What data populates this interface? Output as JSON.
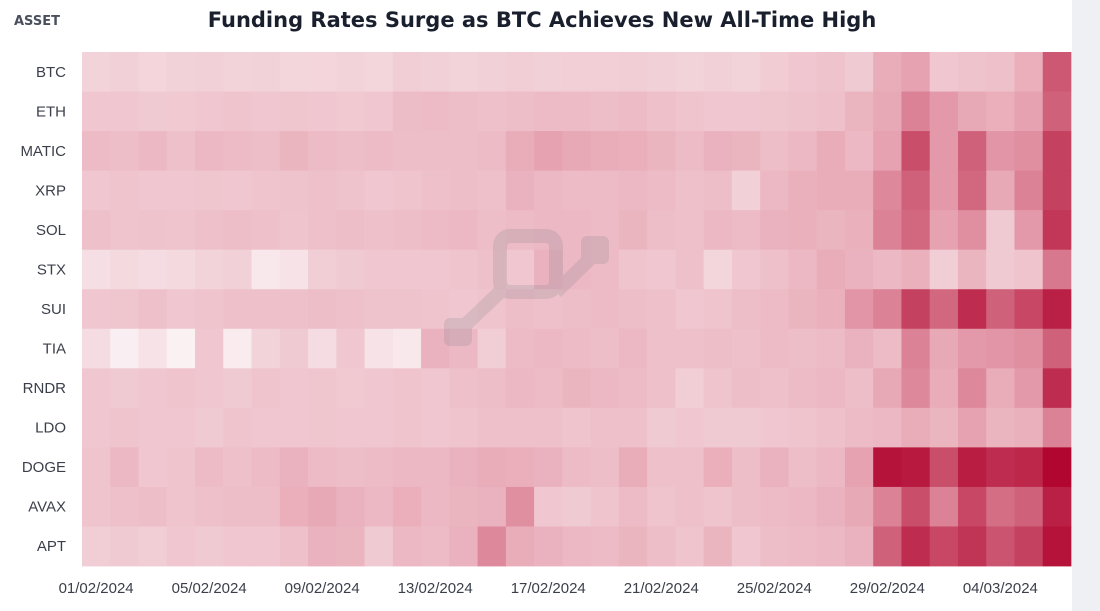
{
  "chart_data": {
    "type": "heatmap",
    "title": "Funding Rates Surge as BTC Achieves New All-Time High",
    "ylabel": "ASSET",
    "xlabel": "",
    "rows": [
      "BTC",
      "ETH",
      "MATIC",
      "XRP",
      "SOL",
      "STX",
      "SUI",
      "TIA",
      "RNDR",
      "LDO",
      "DOGE",
      "AVAX",
      "APT"
    ],
    "columns": [
      "01/02/2024",
      "02/02/2024",
      "03/02/2024",
      "04/02/2024",
      "05/02/2024",
      "06/02/2024",
      "07/02/2024",
      "08/02/2024",
      "09/02/2024",
      "10/02/2024",
      "11/02/2024",
      "12/02/2024",
      "13/02/2024",
      "14/02/2024",
      "15/02/2024",
      "16/02/2024",
      "17/02/2024",
      "18/02/2024",
      "19/02/2024",
      "20/02/2024",
      "21/02/2024",
      "22/02/2024",
      "23/02/2024",
      "24/02/2024",
      "25/02/2024",
      "26/02/2024",
      "27/02/2024",
      "28/02/2024",
      "29/02/2024",
      "01/03/2024",
      "02/03/2024",
      "03/03/2024",
      "04/03/2024",
      "05/03/2024",
      "06/03/2024"
    ],
    "xticks": [
      "01/02/2024",
      "05/02/2024",
      "09/02/2024",
      "13/02/2024",
      "17/02/2024",
      "21/02/2024",
      "25/02/2024",
      "29/02/2024",
      "04/03/2024"
    ],
    "values": [
      [
        0.22,
        0.24,
        0.21,
        0.23,
        0.24,
        0.22,
        0.23,
        0.2,
        0.21,
        0.22,
        0.2,
        0.26,
        0.24,
        0.22,
        0.24,
        0.26,
        0.24,
        0.25,
        0.25,
        0.26,
        0.24,
        0.22,
        0.24,
        0.22,
        0.27,
        0.3,
        0.33,
        0.28,
        0.48,
        0.52,
        0.3,
        0.33,
        0.35,
        0.46,
        0.75
      ],
      [
        0.3,
        0.3,
        0.28,
        0.29,
        0.3,
        0.32,
        0.3,
        0.31,
        0.3,
        0.29,
        0.3,
        0.37,
        0.38,
        0.36,
        0.34,
        0.36,
        0.38,
        0.38,
        0.36,
        0.38,
        0.34,
        0.32,
        0.3,
        0.3,
        0.31,
        0.33,
        0.35,
        0.42,
        0.5,
        0.62,
        0.55,
        0.5,
        0.46,
        0.52,
        0.72
      ],
      [
        0.38,
        0.36,
        0.4,
        0.34,
        0.4,
        0.38,
        0.36,
        0.42,
        0.38,
        0.36,
        0.38,
        0.36,
        0.36,
        0.36,
        0.38,
        0.48,
        0.52,
        0.5,
        0.48,
        0.46,
        0.42,
        0.38,
        0.44,
        0.42,
        0.36,
        0.4,
        0.48,
        0.4,
        0.52,
        0.78,
        0.55,
        0.72,
        0.56,
        0.58,
        0.82
      ],
      [
        0.3,
        0.32,
        0.3,
        0.3,
        0.31,
        0.3,
        0.32,
        0.33,
        0.34,
        0.33,
        0.3,
        0.32,
        0.34,
        0.36,
        0.34,
        0.44,
        0.4,
        0.38,
        0.38,
        0.4,
        0.38,
        0.34,
        0.36,
        0.24,
        0.4,
        0.45,
        0.48,
        0.48,
        0.6,
        0.72,
        0.55,
        0.7,
        0.5,
        0.62,
        0.82
      ],
      [
        0.34,
        0.32,
        0.33,
        0.32,
        0.34,
        0.36,
        0.34,
        0.32,
        0.34,
        0.36,
        0.34,
        0.36,
        0.38,
        0.4,
        0.36,
        0.38,
        0.4,
        0.4,
        0.38,
        0.42,
        0.36,
        0.34,
        0.4,
        0.38,
        0.44,
        0.45,
        0.42,
        0.45,
        0.62,
        0.7,
        0.52,
        0.58,
        0.28,
        0.55,
        0.85
      ],
      [
        0.14,
        0.18,
        0.16,
        0.18,
        0.22,
        0.24,
        0.08,
        0.12,
        0.26,
        0.28,
        0.3,
        0.3,
        0.3,
        0.32,
        0.34,
        0.3,
        0.44,
        0.4,
        0.38,
        0.32,
        0.3,
        0.34,
        0.2,
        0.3,
        0.34,
        0.4,
        0.48,
        0.44,
        0.4,
        0.45,
        0.26,
        0.42,
        0.28,
        0.32,
        0.65
      ],
      [
        0.3,
        0.31,
        0.34,
        0.3,
        0.32,
        0.34,
        0.35,
        0.34,
        0.36,
        0.34,
        0.33,
        0.33,
        0.32,
        0.3,
        0.32,
        0.36,
        0.34,
        0.36,
        0.38,
        0.36,
        0.34,
        0.3,
        0.32,
        0.36,
        0.38,
        0.42,
        0.45,
        0.56,
        0.62,
        0.82,
        0.7,
        0.88,
        0.72,
        0.8,
        0.92
      ],
      [
        0.16,
        0.04,
        0.12,
        0.02,
        0.3,
        0.06,
        0.22,
        0.28,
        0.16,
        0.3,
        0.12,
        0.08,
        0.44,
        0.4,
        0.26,
        0.38,
        0.4,
        0.38,
        0.36,
        0.4,
        0.34,
        0.34,
        0.36,
        0.34,
        0.38,
        0.36,
        0.38,
        0.44,
        0.38,
        0.62,
        0.5,
        0.55,
        0.56,
        0.58,
        0.72
      ],
      [
        0.3,
        0.28,
        0.3,
        0.32,
        0.3,
        0.28,
        0.32,
        0.3,
        0.31,
        0.29,
        0.3,
        0.32,
        0.3,
        0.34,
        0.36,
        0.4,
        0.38,
        0.42,
        0.4,
        0.38,
        0.34,
        0.26,
        0.32,
        0.36,
        0.34,
        0.38,
        0.4,
        0.36,
        0.5,
        0.6,
        0.48,
        0.6,
        0.48,
        0.55,
        0.88
      ],
      [
        0.3,
        0.32,
        0.3,
        0.3,
        0.28,
        0.32,
        0.3,
        0.3,
        0.31,
        0.3,
        0.3,
        0.32,
        0.3,
        0.32,
        0.34,
        0.34,
        0.34,
        0.32,
        0.34,
        0.34,
        0.28,
        0.3,
        0.28,
        0.28,
        0.3,
        0.32,
        0.34,
        0.38,
        0.4,
        0.48,
        0.42,
        0.52,
        0.42,
        0.45,
        0.62
      ],
      [
        0.32,
        0.4,
        0.3,
        0.32,
        0.38,
        0.34,
        0.38,
        0.44,
        0.38,
        0.36,
        0.38,
        0.4,
        0.4,
        0.44,
        0.48,
        0.46,
        0.44,
        0.38,
        0.36,
        0.48,
        0.34,
        0.34,
        0.46,
        0.36,
        0.44,
        0.36,
        0.4,
        0.52,
        0.96,
        0.94,
        0.78,
        0.93,
        0.88,
        0.9,
        1.0
      ],
      [
        0.32,
        0.34,
        0.36,
        0.32,
        0.34,
        0.36,
        0.36,
        0.46,
        0.5,
        0.44,
        0.4,
        0.46,
        0.4,
        0.42,
        0.44,
        0.58,
        0.3,
        0.28,
        0.32,
        0.38,
        0.32,
        0.34,
        0.32,
        0.36,
        0.38,
        0.4,
        0.44,
        0.5,
        0.62,
        0.78,
        0.62,
        0.8,
        0.68,
        0.72,
        0.92
      ],
      [
        0.26,
        0.28,
        0.26,
        0.3,
        0.28,
        0.3,
        0.3,
        0.34,
        0.44,
        0.42,
        0.28,
        0.4,
        0.38,
        0.44,
        0.6,
        0.48,
        0.44,
        0.4,
        0.38,
        0.42,
        0.36,
        0.32,
        0.42,
        0.3,
        0.36,
        0.38,
        0.4,
        0.44,
        0.72,
        0.88,
        0.8,
        0.86,
        0.76,
        0.82,
        0.96
      ]
    ],
    "color_scale": {
      "low": "#fbf4f6",
      "mid": "#e8a9b6",
      "high": "#b1062f"
    },
    "grid": false,
    "legend": "none"
  }
}
